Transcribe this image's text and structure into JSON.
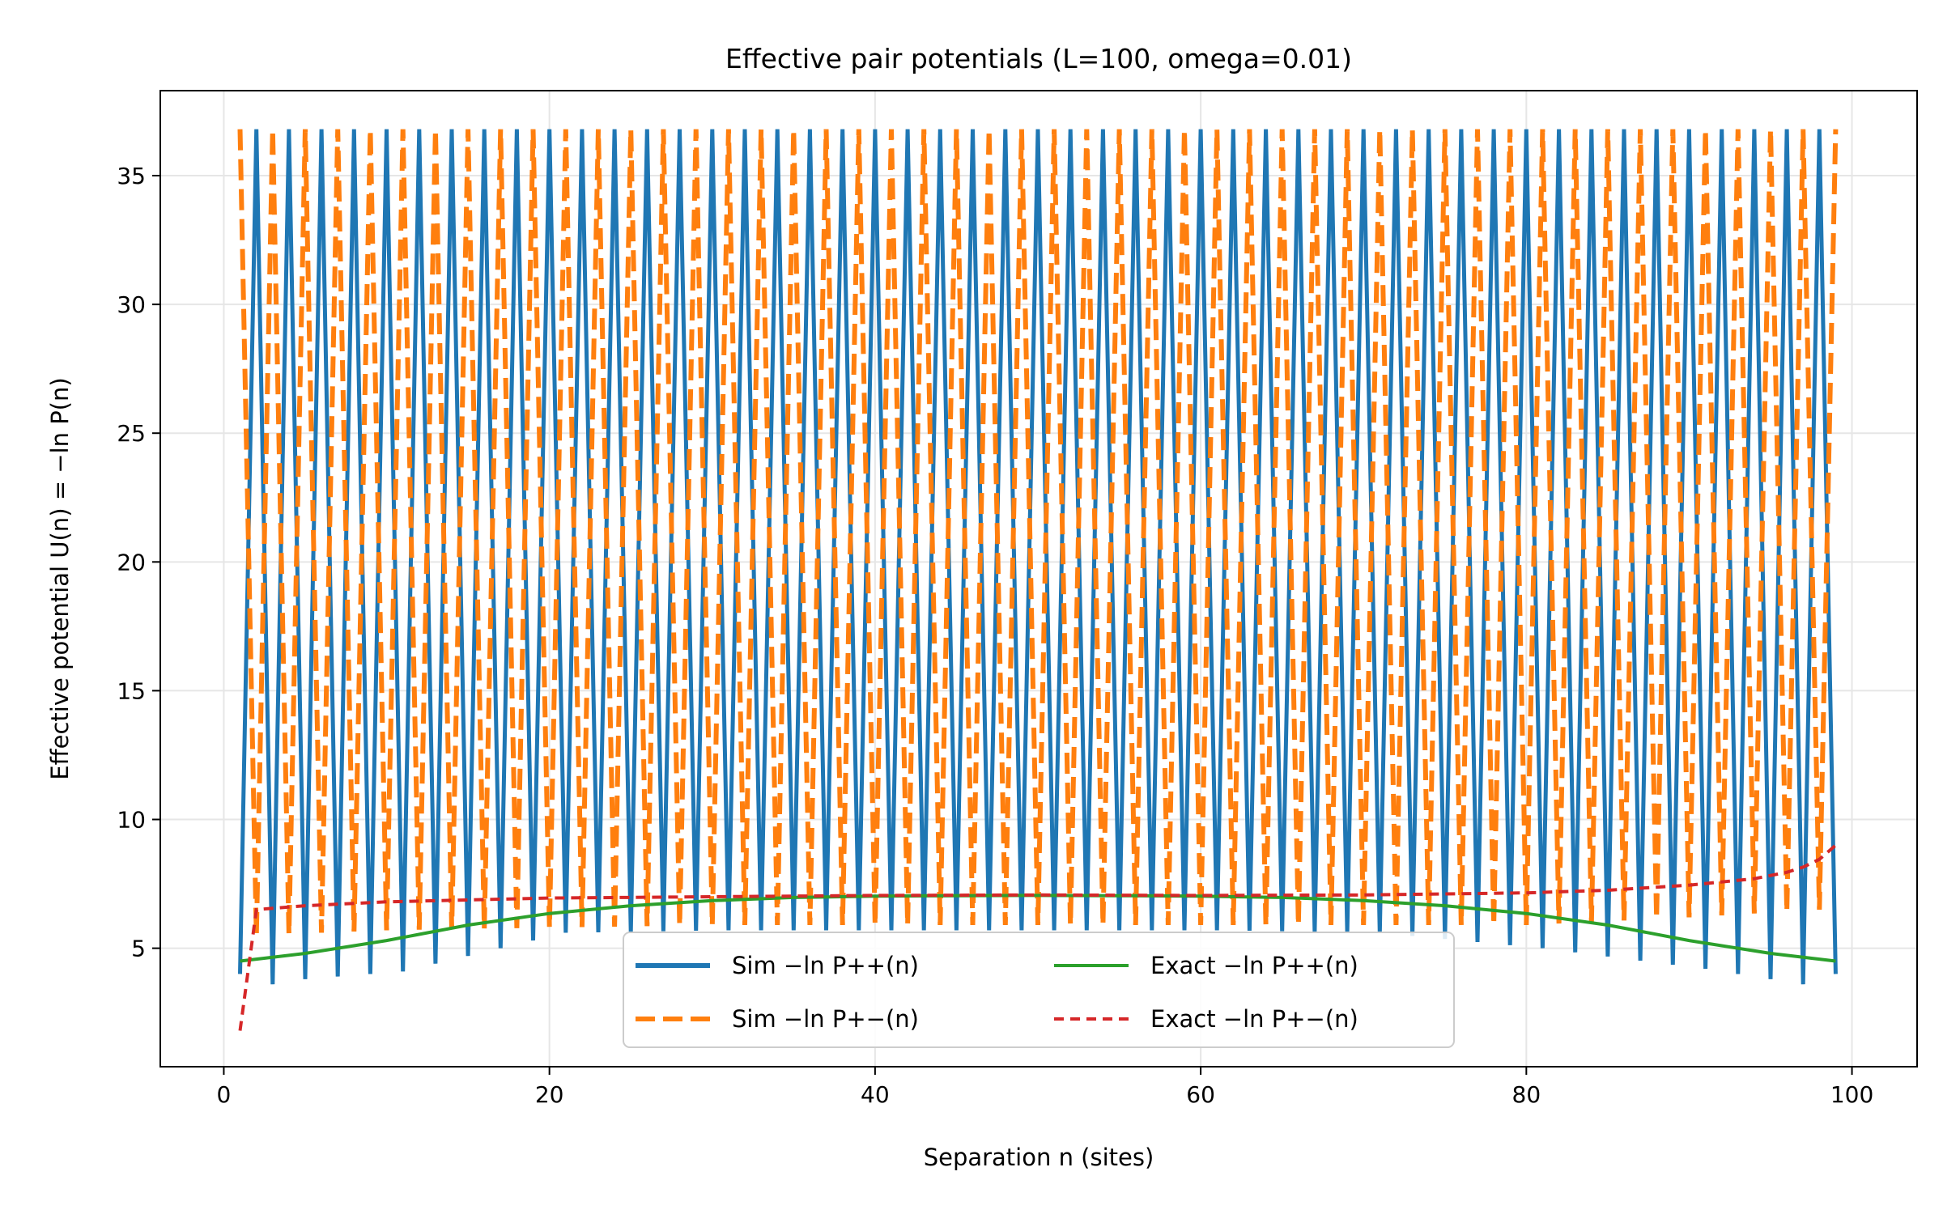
{
  "chart_data": {
    "type": "line",
    "title": "Effective pair potentials (L=100, omega=0.01)",
    "xlabel": "Separation n (sites)",
    "ylabel": "Effective potential U(n) = −ln P(n)",
    "xlim": [
      -3.9,
      104
    ],
    "ylim": [
      0.4,
      38.3
    ],
    "xticks": [
      0,
      20,
      40,
      60,
      80,
      100
    ],
    "yticks": [
      5,
      10,
      15,
      20,
      25,
      30,
      35
    ],
    "grid": true,
    "legend_position": "lower center",
    "legend_columns": 2,
    "series": [
      {
        "name": "Sim −ln P++(n)",
        "color": "#1f77b4",
        "style": "solid",
        "description": "alternates every site: odd n near lower envelope (≈4–7), even n at 36.8",
        "x_range": [
          1,
          99
        ],
        "high_value": 36.8,
        "low_values_odd_n": [
          [
            1,
            4.0
          ],
          [
            3,
            3.6
          ],
          [
            5,
            3.8
          ],
          [
            11,
            4.1
          ],
          [
            21,
            5.6
          ],
          [
            31,
            5.7
          ],
          [
            41,
            5.7
          ],
          [
            51,
            5.7
          ],
          [
            61,
            5.7
          ],
          [
            71,
            5.6
          ],
          [
            81,
            5.0
          ],
          [
            91,
            4.2
          ],
          [
            97,
            3.6
          ],
          [
            99,
            4.0
          ]
        ]
      },
      {
        "name": "Sim −ln P+−(n)",
        "color": "#ff7f0e",
        "style": "dashed",
        "description": "alternates every site opposite to P++: even n near lower envelope, odd n at 36.8",
        "x_range": [
          1,
          99
        ],
        "high_value": 36.8,
        "low_values_even_n": [
          [
            2,
            5.5
          ],
          [
            10,
            5.7
          ],
          [
            20,
            5.8
          ],
          [
            30,
            5.9
          ],
          [
            40,
            5.9
          ],
          [
            50,
            5.9
          ],
          [
            60,
            5.9
          ],
          [
            70,
            5.9
          ],
          [
            80,
            5.9
          ],
          [
            90,
            6.2
          ],
          [
            98,
            6.5
          ]
        ]
      },
      {
        "name": "Exact −ln P++(n)",
        "color": "#2ca02c",
        "style": "solid",
        "x": [
          1,
          5,
          10,
          15,
          20,
          25,
          30,
          35,
          40,
          45,
          50,
          55,
          60,
          65,
          70,
          75,
          80,
          85,
          90,
          95,
          99
        ],
        "values": [
          4.5,
          4.8,
          5.3,
          5.9,
          6.35,
          6.65,
          6.85,
          6.97,
          7.02,
          7.04,
          7.05,
          7.04,
          7.02,
          6.97,
          6.85,
          6.65,
          6.35,
          5.9,
          5.3,
          4.8,
          4.5
        ]
      },
      {
        "name": "Exact −ln P+−(n)",
        "color": "#d62728",
        "style": "dashed",
        "x": [
          1,
          2,
          3,
          5,
          10,
          20,
          30,
          40,
          50,
          60,
          70,
          80,
          85,
          90,
          94,
          96,
          97,
          98,
          99
        ],
        "values": [
          1.8,
          6.5,
          6.55,
          6.65,
          6.8,
          6.95,
          7.0,
          7.05,
          7.07,
          7.05,
          7.07,
          7.15,
          7.25,
          7.45,
          7.7,
          7.95,
          8.15,
          8.45,
          9.0
        ]
      }
    ]
  }
}
